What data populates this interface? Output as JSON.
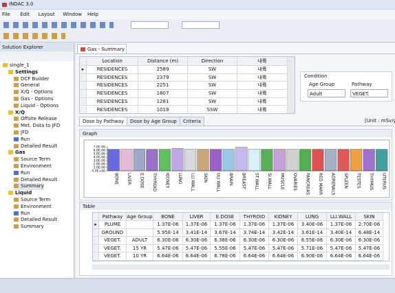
{
  "window_title": "INDAC 3.0",
  "menu": [
    "File",
    "Edit",
    "Layout",
    "Window",
    "Help"
  ],
  "explorer": {
    "title": "Solution Explorer",
    "tree": [
      {
        "label": "single_1",
        "children": [
          {
            "label": "Settings",
            "children": [
              {
                "label": "DCF Builder"
              },
              {
                "label": "General"
              },
              {
                "label": "X/Q - Options"
              },
              {
                "label": "Gas - Options"
              },
              {
                "label": "Liquid - Options"
              }
            ]
          },
          {
            "label": "X/Q",
            "children": [
              {
                "label": "Offsite Release"
              },
              {
                "label": "Met. Data to JFD"
              },
              {
                "label": "JFD"
              },
              {
                "label": "Run"
              },
              {
                "label": "Detailed Result"
              }
            ]
          },
          {
            "label": "Gas",
            "children": [
              {
                "label": "Source Term"
              },
              {
                "label": "Environment"
              },
              {
                "label": "Run"
              },
              {
                "label": "Detailed Result"
              },
              {
                "label": "Summary"
              }
            ]
          },
          {
            "label": "Liquid",
            "children": [
              {
                "label": "Source Term"
              },
              {
                "label": "Environment"
              },
              {
                "label": "Run"
              },
              {
                "label": "Detailed Result"
              },
              {
                "label": "Summary"
              }
            ]
          }
        ]
      }
    ]
  },
  "document_tab": "Gas - Summary",
  "location_table": {
    "headers": [
      "Location",
      "Distance (m)",
      "Direction",
      "내륙"
    ],
    "rows": [
      [
        "RESIDENCES",
        2589,
        "SW",
        "내륙"
      ],
      [
        "RESIDENCES",
        2379,
        "SW",
        "내륙"
      ],
      [
        "RESIDENCES",
        2251,
        "SW",
        "내륙"
      ],
      [
        "RESIDENCES",
        1807,
        "SW",
        "내륙"
      ],
      [
        "RESIDENCES",
        1281,
        "SW",
        "내륙"
      ],
      [
        "RESIDENCES",
        1019,
        "SSW",
        "내륙"
      ]
    ]
  },
  "condition": {
    "title": "Condition",
    "age_group_label": "Age Group",
    "age_group": "Adult",
    "pathway_label": "Pathway",
    "pathway": "VEGET."
  },
  "result_tabs": [
    "Dose by Pathway",
    "Dose by Age Group",
    "Criteria"
  ],
  "unit": "[Unit : mSv/yr]",
  "graph_title": "Graph",
  "chart_data": {
    "type": "bar",
    "categories": [
      "BONE",
      "LIVER",
      "E.DOSE",
      "THYROID",
      "KIDNEY",
      "LUNG",
      "LLI.WALL",
      "SKIN",
      "ULI.WALL",
      "BRAIN",
      "BREAST",
      "ST.WALL",
      "SI.WALL",
      "MUSCLE",
      "OVARIES",
      "PANCREAS",
      "RED MARR",
      "ADRENALS",
      "SPLEEN",
      "TESTES",
      "THYMUS",
      "UTERUS"
    ],
    "values": [
      6.3e-06,
      6.3e-06,
      6.38e-06,
      6.3e-06,
      6.3e-06,
      6.55e-06,
      6.3e-06,
      6.3e-06,
      6.3e-06,
      6.3e-06,
      6.9e-06,
      6.3e-06,
      6.3e-06,
      6.3e-06,
      6.3e-06,
      6.3e-06,
      6.3e-06,
      6.3e-06,
      6.3e-06,
      6.3e-06,
      6.3e-06,
      6.3e-06
    ],
    "colors": [
      "#6a6ae8",
      "#e8b8d8",
      "#a0a8c8",
      "#9a70c8",
      "#60c060",
      "#c0a8e8",
      "#d8d8e0",
      "#c8a878",
      "#9a60c8",
      "#98c8e8",
      "#c8b8f0",
      "#d8f0f8",
      "#58b058",
      "#c8a0d8",
      "#d0d0d0",
      "#50b050",
      "#e05050",
      "#a8b0c8",
      "#e05858",
      "#f0a040",
      "#a070d0",
      "#40a0a0"
    ],
    "ylim": [
      0,
      7e-06
    ],
    "yticks": [
      {
        "value": 0,
        "label": "0.0E+00"
      },
      {
        "value": 1e-06,
        "label": "1.0E-06"
      },
      {
        "value": 2e-06,
        "label": "2.0E-06"
      },
      {
        "value": 3e-06,
        "label": "3.0E-06"
      },
      {
        "value": 4e-06,
        "label": "4.0E-06"
      },
      {
        "value": 5e-06,
        "label": "5.0E-06"
      },
      {
        "value": 6e-06,
        "label": "6.0E-06"
      },
      {
        "value": 7e-06,
        "label": "7.0E-06"
      }
    ]
  },
  "table_title": "Table",
  "dose_table": {
    "headers": [
      "Pathway",
      "Age Group",
      "BONE",
      "LIVER",
      "E.DOSE",
      "THYROID",
      "KIDNEY",
      "LUNG",
      "LLI.WALL",
      "SKIN"
    ],
    "rows": [
      [
        "PLUME",
        null,
        "1.37E-06",
        "1.37E-06",
        "1.37E-06",
        "1.37E-06",
        "1.37E-06",
        "3.40E-06",
        "1.37E-06",
        "2.70E-06"
      ],
      [
        "GROUND",
        null,
        "5.95E-14",
        "3.41E-14",
        "3.67E-14",
        "3.74E-14",
        "3.42E-14",
        "3.61E-14",
        "3.40E-14",
        "6.48E-14"
      ],
      [
        "VEGET.",
        "ADULT",
        "6.30E-06",
        "6.30E-06",
        "6.38E-06",
        "6.30E-06",
        "6.30E-06",
        "6.55E-06",
        "6.30E-06",
        "6.30E-06"
      ],
      [
        "VEGET.",
        "15 YR",
        "5.47E-06",
        "5.47E-06",
        "5.55E-06",
        "5.47E-06",
        "5.47E-06",
        "5.71E-06",
        "5.47E-06",
        "5.47E-06"
      ],
      [
        "VEGET.",
        "10 YR",
        "6.64E-06",
        "6.64E-06",
        "6.78E-06",
        "6.64E-06",
        "6.64E-06",
        "6.90E-06",
        "6.64E-06",
        "6.64E-06"
      ]
    ]
  }
}
